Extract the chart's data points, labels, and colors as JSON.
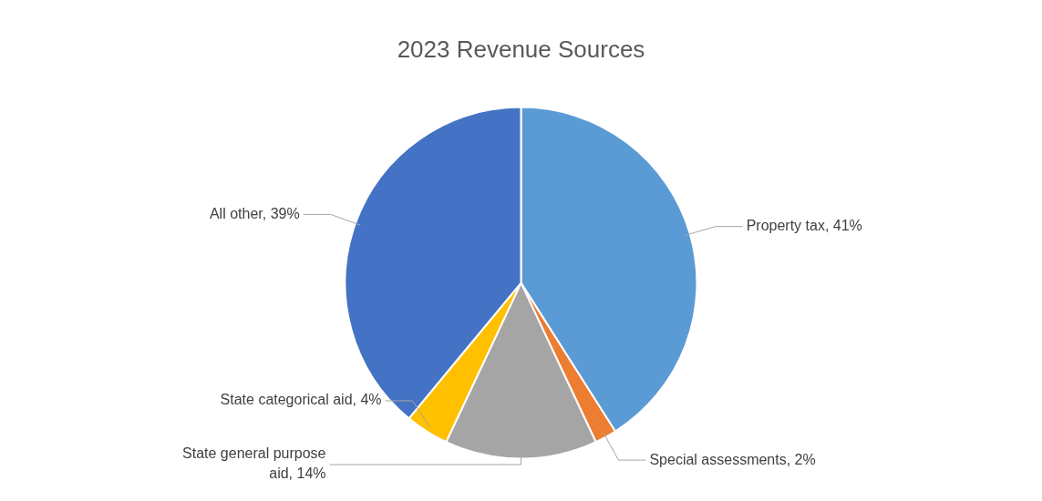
{
  "chart_data": {
    "type": "pie",
    "title": "2023 Revenue Sources",
    "categories": [
      "Property tax",
      "Special assessments",
      "State general purpose aid",
      "State categorical aid",
      "All other"
    ],
    "values": [
      41,
      2,
      14,
      4,
      39
    ],
    "value_labels": [
      "41%",
      "2%",
      "14%",
      "4%",
      "39%"
    ],
    "colors": [
      "#5b9bd5",
      "#ed7d31",
      "#a5a5a5",
      "#ffc000",
      "#4472c4"
    ],
    "legend": false
  }
}
